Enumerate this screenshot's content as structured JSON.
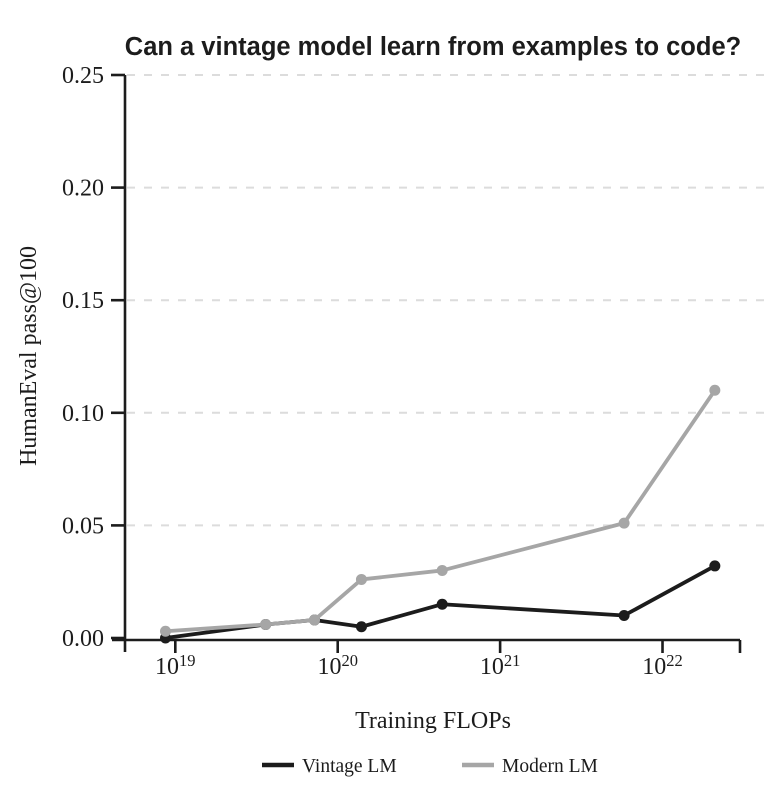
{
  "page": {
    "background": "#ffffff"
  },
  "chart_data": {
    "type": "line",
    "title": "Can a vintage model learn from examples to code?",
    "xlabel": "Training FLOPs",
    "ylabel": "HumanEval pass@100",
    "x_scale": "log10",
    "xlim": [
      4.9e+18,
      3e+22
    ],
    "ylim": [
      0,
      0.25
    ],
    "grid": {
      "horizontal": true,
      "style": "dashed",
      "color": "#dcdcdc"
    },
    "axis_color": "#1c1c1c",
    "legend_position": "bottom",
    "x_ticks": [
      {
        "base": "10",
        "exponent": "19",
        "value": 1e+19
      },
      {
        "base": "10",
        "exponent": "20",
        "value": 1e+20
      },
      {
        "base": "10",
        "exponent": "21",
        "value": 1e+21
      },
      {
        "base": "10",
        "exponent": "22",
        "value": 1e+22
      }
    ],
    "y_ticks": [
      {
        "label": "0.00",
        "value": 0.0
      },
      {
        "label": "0.05",
        "value": 0.05
      },
      {
        "label": "0.10",
        "value": 0.1
      },
      {
        "label": "0.15",
        "value": 0.15
      },
      {
        "label": "0.20",
        "value": 0.2
      },
      {
        "label": "0.25",
        "value": 0.25
      }
    ],
    "x": [
      8.7e+18,
      3.6e+19,
      7.2e+19,
      1.4e+20,
      4.4e+20,
      5.8e+21,
      2.1e+22
    ],
    "series": [
      {
        "name": "Vintage LM",
        "color": "#1c1c1c",
        "values": [
          0.0,
          0.006,
          0.008,
          0.005,
          0.015,
          0.01,
          0.032
        ]
      },
      {
        "name": "Modern LM",
        "color": "#a6a6a6",
        "values": [
          0.003,
          0.006,
          0.008,
          0.026,
          0.03,
          0.051,
          0.11
        ]
      }
    ]
  }
}
